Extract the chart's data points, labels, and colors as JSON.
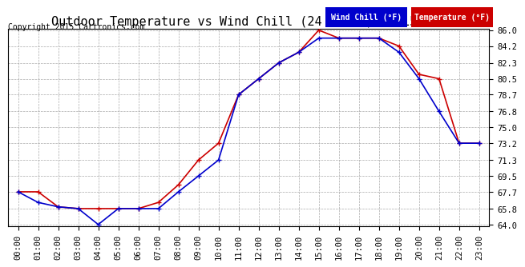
{
  "title": "Outdoor Temperature vs Wind Chill (24 Hours)  20150621",
  "copyright": "Copyright 2015 Cartronics.com",
  "legend_wind_chill": "Wind Chill (°F)",
  "legend_temperature": "Temperature (°F)",
  "hours": [
    0,
    1,
    2,
    3,
    4,
    5,
    6,
    7,
    8,
    9,
    10,
    11,
    12,
    13,
    14,
    15,
    16,
    17,
    18,
    19,
    20,
    21,
    22,
    23
  ],
  "x_labels": [
    "00:00",
    "01:00",
    "02:00",
    "03:00",
    "04:00",
    "05:00",
    "06:00",
    "07:00",
    "08:00",
    "09:00",
    "10:00",
    "11:00",
    "12:00",
    "13:00",
    "14:00",
    "15:00",
    "16:00",
    "17:00",
    "18:00",
    "19:00",
    "20:00",
    "21:00",
    "22:00",
    "23:00"
  ],
  "temperature": [
    67.7,
    67.7,
    66.0,
    65.8,
    65.8,
    65.8,
    65.8,
    66.5,
    68.5,
    71.3,
    73.2,
    78.7,
    80.5,
    82.3,
    83.5,
    86.0,
    85.1,
    85.1,
    85.1,
    84.2,
    81.0,
    80.5,
    73.2,
    73.2
  ],
  "wind_chill": [
    67.7,
    66.5,
    66.0,
    65.8,
    64.0,
    65.8,
    65.8,
    65.8,
    67.7,
    69.5,
    71.3,
    78.7,
    80.5,
    82.3,
    83.5,
    85.1,
    85.1,
    85.1,
    85.1,
    83.5,
    80.5,
    76.8,
    73.2,
    73.2
  ],
  "temp_color": "#cc0000",
  "wind_chill_color": "#0000cc",
  "ylim_min": 64.0,
  "ylim_max": 86.0,
  "yticks": [
    64.0,
    65.8,
    67.7,
    69.5,
    71.3,
    73.2,
    75.0,
    76.8,
    78.7,
    80.5,
    82.3,
    84.2,
    86.0
  ],
  "background_color": "#ffffff",
  "grid_color": "#aaaaaa",
  "title_fontsize": 11,
  "axis_fontsize": 7.5,
  "copyright_fontsize": 7
}
